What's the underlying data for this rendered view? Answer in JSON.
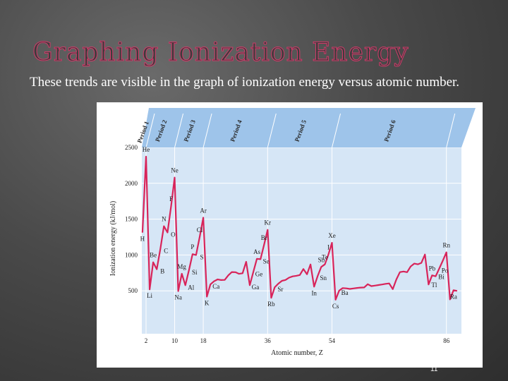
{
  "slide": {
    "title": "Graphing Ionization Energy",
    "bullet_glyph": "",
    "body": "These trends are visible in the graph of ionization energy versus atomic number.",
    "page_number": "11"
  },
  "colors": {
    "series": "#d8245a",
    "plot_bg": "#d6e6f6",
    "band": "#9ec4ea",
    "band_top": "#86b2de"
  },
  "chart_data": {
    "type": "line",
    "title": "",
    "xlabel": "Atomic number, Z",
    "ylabel": "Ionization energy (kJ/mol)",
    "ylim": [
      0,
      2500
    ],
    "xlim": [
      1,
      90
    ],
    "yticks": [
      500,
      1000,
      1500,
      2000,
      2500
    ],
    "xticks": [
      2,
      10,
      18,
      36,
      54,
      86
    ],
    "grid": true,
    "periods": [
      {
        "label": "Period 1",
        "start": 1,
        "end": 2
      },
      {
        "label": "Period 2",
        "start": 3,
        "end": 10
      },
      {
        "label": "Period 3",
        "start": 11,
        "end": 18
      },
      {
        "label": "Period 4",
        "start": 19,
        "end": 36
      },
      {
        "label": "Period 5",
        "start": 37,
        "end": 54
      },
      {
        "label": "Period 6",
        "start": 55,
        "end": 86
      }
    ],
    "series": [
      {
        "x": [
          1,
          2,
          3,
          4,
          5,
          6,
          7,
          8,
          9,
          10,
          11,
          12,
          13,
          14,
          15,
          16,
          17,
          18,
          19,
          20,
          21,
          22,
          23,
          24,
          25,
          26,
          27,
          28,
          29,
          30,
          31,
          32,
          33,
          34,
          35,
          36,
          37,
          38,
          39,
          40,
          41,
          42,
          43,
          44,
          45,
          46,
          47,
          48,
          49,
          50,
          51,
          52,
          53,
          54,
          55,
          56,
          57,
          58,
          59,
          60,
          61,
          62,
          63,
          64,
          65,
          66,
          67,
          68,
          69,
          70,
          71,
          72,
          73,
          74,
          75,
          76,
          77,
          78,
          79,
          80,
          81,
          82,
          83,
          84,
          85,
          86,
          87,
          88,
          89
        ],
        "values": [
          1312,
          2372,
          520,
          899,
          801,
          1086,
          1402,
          1314,
          1681,
          2081,
          496,
          738,
          578,
          787,
          1012,
          1000,
          1251,
          1521,
          419,
          590,
          633,
          659,
          651,
          653,
          717,
          762,
          760,
          737,
          745,
          906,
          579,
          762,
          947,
          941,
          1140,
          1351,
          403,
          550,
          600,
          640,
          652,
          684,
          702,
          710,
          720,
          804,
          731,
          868,
          558,
          709,
          834,
          869,
          1008,
          1170,
          376,
          503,
          538,
          534,
          527,
          533,
          540,
          545,
          547,
          593,
          566,
          573,
          581,
          589,
          597,
          603,
          524,
          659,
          761,
          770,
          760,
          840,
          880,
          870,
          890,
          1007,
          589,
          716,
          703,
          812,
          920,
          1037,
          380,
          509,
          499
        ]
      }
    ],
    "annotations": [
      {
        "label": "H",
        "x": 1,
        "y": 1312
      },
      {
        "label": "He",
        "x": 2,
        "y": 2372
      },
      {
        "label": "Li",
        "x": 3,
        "y": 520
      },
      {
        "label": "Be",
        "x": 4,
        "y": 899
      },
      {
        "label": "B",
        "x": 5,
        "y": 801
      },
      {
        "label": "C",
        "x": 6,
        "y": 1086
      },
      {
        "label": "N",
        "x": 7,
        "y": 1402
      },
      {
        "label": "O",
        "x": 8,
        "y": 1314
      },
      {
        "label": "F",
        "x": 9,
        "y": 1681
      },
      {
        "label": "Ne",
        "x": 10,
        "y": 2081
      },
      {
        "label": "Na",
        "x": 11,
        "y": 496
      },
      {
        "label": "Mg",
        "x": 12,
        "y": 738
      },
      {
        "label": "Al",
        "x": 13,
        "y": 578
      },
      {
        "label": "Si",
        "x": 14,
        "y": 787
      },
      {
        "label": "P",
        "x": 15,
        "y": 1012
      },
      {
        "label": "S",
        "x": 16,
        "y": 1000
      },
      {
        "label": "Cl",
        "x": 17,
        "y": 1251
      },
      {
        "label": "Ar",
        "x": 18,
        "y": 1521
      },
      {
        "label": "K",
        "x": 19,
        "y": 419
      },
      {
        "label": "Ca",
        "x": 20,
        "y": 590
      },
      {
        "label": "Ga",
        "x": 31,
        "y": 579
      },
      {
        "label": "Ge",
        "x": 32,
        "y": 762
      },
      {
        "label": "As",
        "x": 33,
        "y": 947
      },
      {
        "label": "Se",
        "x": 34,
        "y": 941
      },
      {
        "label": "Br",
        "x": 35,
        "y": 1140
      },
      {
        "label": "Kr",
        "x": 36,
        "y": 1351
      },
      {
        "label": "Rb",
        "x": 37,
        "y": 403
      },
      {
        "label": "Sr",
        "x": 38,
        "y": 550
      },
      {
        "label": "In",
        "x": 49,
        "y": 558
      },
      {
        "label": "Sn",
        "x": 50,
        "y": 709
      },
      {
        "label": "Sb",
        "x": 51,
        "y": 834
      },
      {
        "label": "Te",
        "x": 52,
        "y": 869
      },
      {
        "label": "I",
        "x": 53,
        "y": 1008
      },
      {
        "label": "Xe",
        "x": 54,
        "y": 1170
      },
      {
        "label": "Cs",
        "x": 55,
        "y": 376
      },
      {
        "label": "Ba",
        "x": 56,
        "y": 503
      },
      {
        "label": "Tl",
        "x": 81,
        "y": 589
      },
      {
        "label": "Pb",
        "x": 82,
        "y": 716
      },
      {
        "label": "Bi",
        "x": 83,
        "y": 703
      },
      {
        "label": "Po",
        "x": 84,
        "y": 812
      },
      {
        "label": "Rn",
        "x": 86,
        "y": 1037
      },
      {
        "label": "Ra",
        "x": 88,
        "y": 509
      }
    ]
  }
}
